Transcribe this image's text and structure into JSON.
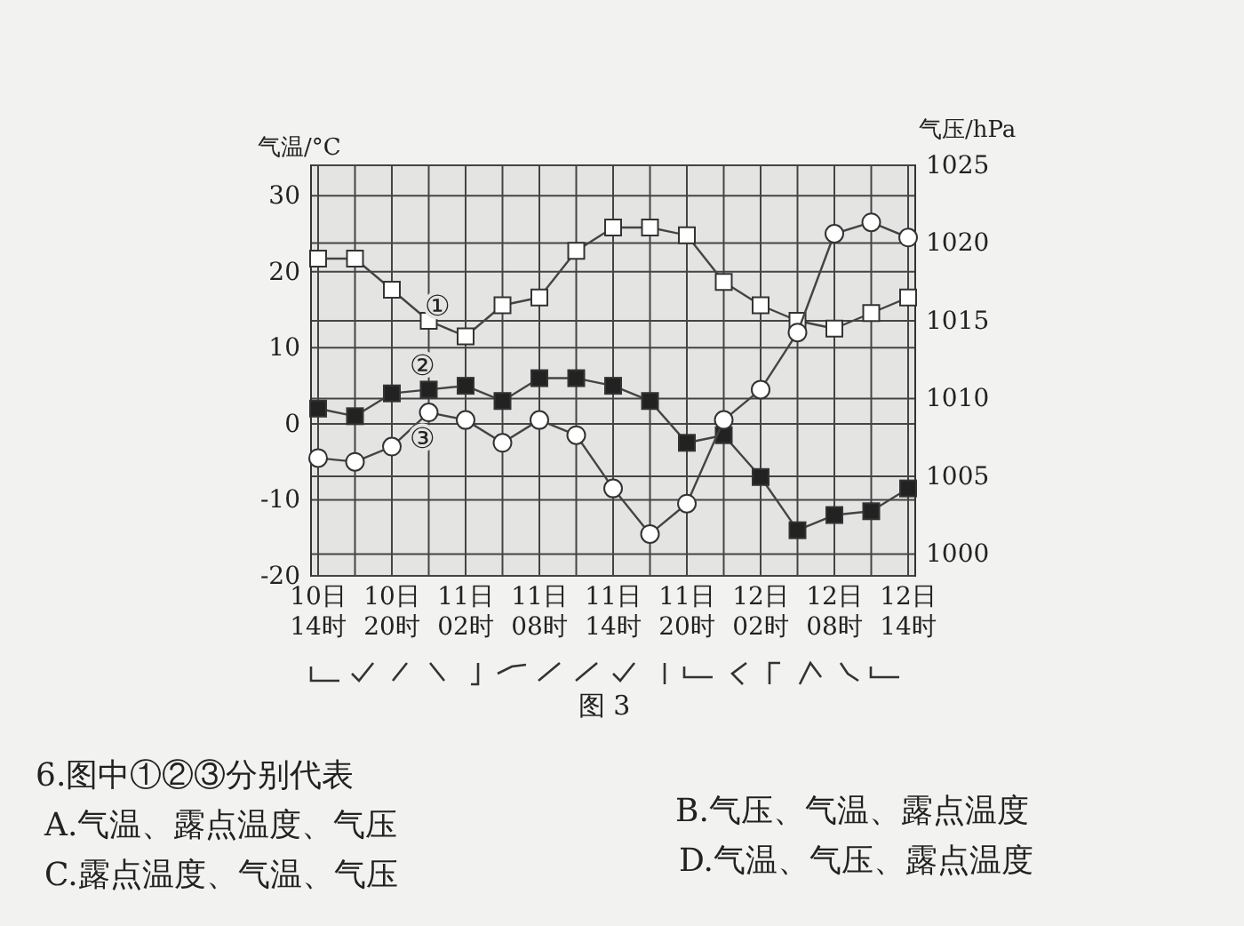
{
  "chart_data": {
    "type": "line",
    "ylabel": "气温/°C",
    "y2label": "气压/hPa",
    "categories": [
      "10日\n14时",
      null,
      "10日\n20时",
      null,
      "11日\n02时",
      null,
      "11日\n08时",
      null,
      "11日\n14时",
      null,
      "11日\n20时",
      null,
      "12日\n02时",
      null,
      "12日\n08时",
      null,
      "12日\n14时"
    ],
    "series": [
      {
        "name": "①",
        "color": "#ffffff",
        "marker": "square",
        "axis": "y2",
        "values": [
          1019,
          1019,
          1017,
          1015,
          1014,
          1016,
          1016.5,
          1019.5,
          1021,
          1021,
          1020.5,
          1017.5,
          1016,
          1015,
          1014.5,
          1015.5,
          1016.5
        ]
      },
      {
        "name": "②",
        "color": "#222222",
        "marker": "square",
        "values": [
          2,
          1,
          4,
          4.5,
          5,
          3,
          6,
          6,
          5,
          3,
          -2.5,
          -1.5,
          -7,
          -14,
          -12,
          -11.5,
          -8.5
        ]
      },
      {
        "name": "③",
        "color": "#ffffff",
        "marker": "circle",
        "values": [
          -4.5,
          -5,
          -3,
          1.5,
          0.5,
          -2.5,
          0.5,
          -1.5,
          -8.5,
          -14.5,
          -10.5,
          0.5,
          4.5,
          12,
          25,
          26.5,
          24.5
        ]
      }
    ],
    "ylim": [
      -20,
      34
    ],
    "yticks": [
      -20,
      -10,
      0,
      10,
      20,
      30
    ],
    "y2lim": [
      998.6,
      1025
    ],
    "y2ticks": [
      1000,
      1005,
      1010,
      1015,
      1020,
      1025
    ],
    "grid": true,
    "annotations": [
      "图 3",
      "6.图中①②③分别代表",
      "A.气温、露点温度、气压",
      "B.气压、气温、露点温度",
      "C.露点温度、气温、气压",
      "D.气温、气压、露点温度"
    ]
  }
}
